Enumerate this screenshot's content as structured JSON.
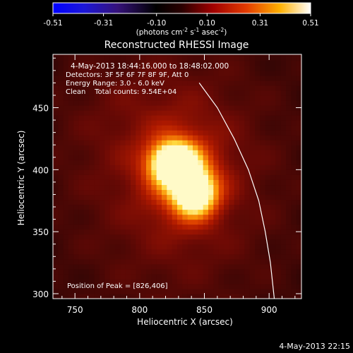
{
  "chart_data": {
    "type": "heatmap",
    "title": "Reconstructed RHESSI Image",
    "xlabel": "Heliocentric X (arcsec)",
    "ylabel": "Heliocentric Y (arcsec)",
    "xlim": [
      733,
      925
    ],
    "ylim": [
      296,
      493
    ],
    "x_ticks": [
      750,
      800,
      850,
      900
    ],
    "y_ticks": [
      300,
      350,
      400,
      450
    ],
    "colorbar": {
      "label": "(photons cm",
      "label_exp1": "-2",
      "label_mid": " s",
      "label_exp2": "-1",
      "label_mid2": " asec",
      "label_exp3": "-2",
      "label_end": ")",
      "ticks": [
        -0.51,
        -0.31,
        -0.1,
        0.1,
        0.31,
        0.51
      ],
      "tick_labels": [
        "-0.51",
        "-0.31",
        "-0.10",
        "0.10",
        "0.31",
        "0.51"
      ],
      "range": [
        -0.51,
        0.51
      ],
      "colormap": "rainbow-to-hot"
    },
    "annotations": [
      "4-May-2013 18:44:16.000 to 18:48:02.000",
      "Detectors: 3F 5F 6F 7F 8F 9F, Att 0",
      "Energy Range: 3.0 - 6.0 keV",
      "Clean    Total counts: 9.54E+04"
    ],
    "peak_label": "Position of Peak = [826,406]",
    "peaks": [
      {
        "x": 826,
        "y": 406,
        "value": 0.51
      },
      {
        "x": 843,
        "y": 381,
        "value": 0.46
      }
    ],
    "limb_curve": [
      [
        846,
        470
      ],
      [
        860,
        450
      ],
      [
        873,
        425
      ],
      [
        884,
        400
      ],
      [
        892,
        375
      ],
      [
        897,
        350
      ],
      [
        901,
        325
      ],
      [
        904,
        296
      ]
    ],
    "footer": "4-May-2013 22:15"
  }
}
